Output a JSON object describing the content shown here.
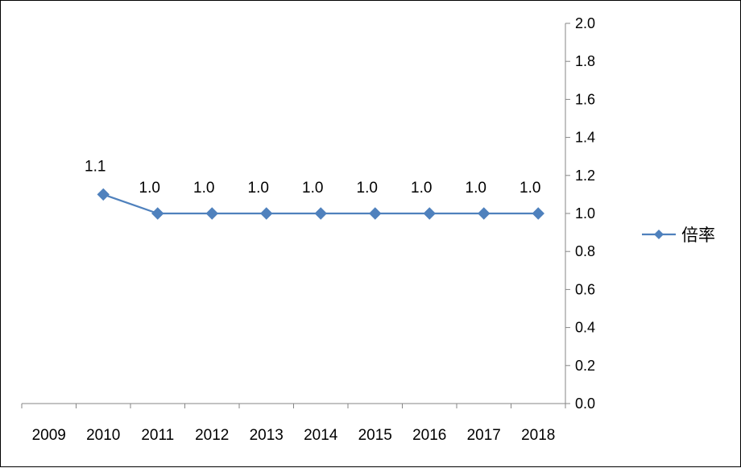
{
  "chart_data": {
    "type": "line",
    "categories": [
      "2009",
      "2010",
      "2011",
      "2012",
      "2013",
      "2014",
      "2015",
      "2016",
      "2017",
      "2018"
    ],
    "series": [
      {
        "name": "倍率",
        "values": [
          null,
          1.1,
          1.0,
          1.0,
          1.0,
          1.0,
          1.0,
          1.0,
          1.0,
          1.0
        ],
        "data_labels": [
          "",
          "1.1",
          "1.0",
          "1.0",
          "1.0",
          "1.0",
          "1.0",
          "1.0",
          "1.0",
          "1.0"
        ],
        "color": "#4F81BD",
        "marker": "diamond"
      }
    ],
    "ylim": [
      0,
      2.0
    ],
    "y_ticks": [
      "0.0",
      "0.2",
      "0.4",
      "0.6",
      "0.8",
      "1.0",
      "1.2",
      "1.4",
      "1.6",
      "1.8",
      "2.0"
    ],
    "y_axis_side": "right",
    "grid": false,
    "legend": {
      "position": "right",
      "entries": [
        "倍率"
      ]
    },
    "title": "",
    "xlabel": "",
    "ylabel": ""
  }
}
